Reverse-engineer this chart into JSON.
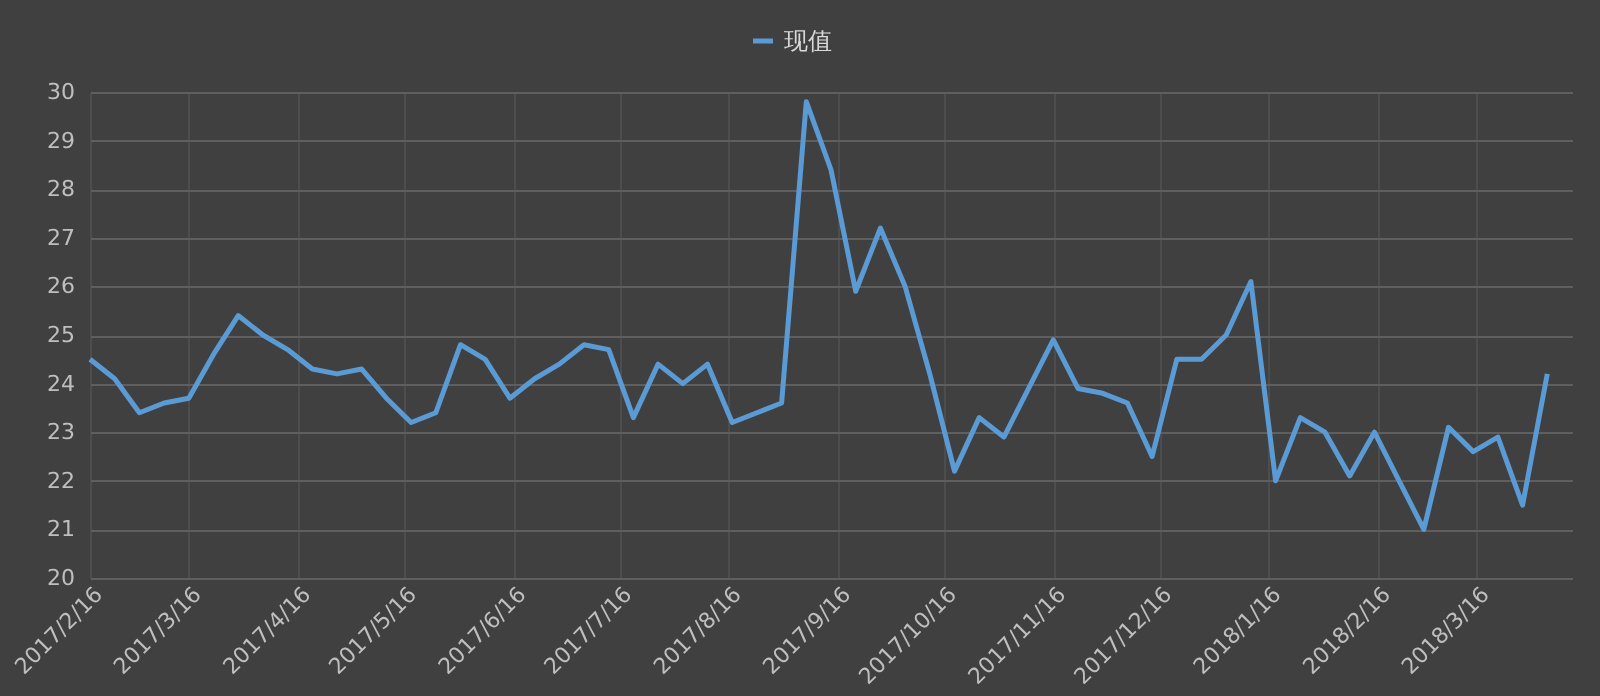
{
  "chart_data": {
    "type": "line",
    "x": [
      "2017-02-16",
      "2017-02-23",
      "2017-03-02",
      "2017-03-09",
      "2017-03-16",
      "2017-03-23",
      "2017-03-30",
      "2017-04-06",
      "2017-04-13",
      "2017-04-20",
      "2017-04-27",
      "2017-05-04",
      "2017-05-11",
      "2017-05-18",
      "2017-05-25",
      "2017-06-01",
      "2017-06-08",
      "2017-06-15",
      "2017-06-22",
      "2017-06-29",
      "2017-07-06",
      "2017-07-13",
      "2017-07-20",
      "2017-07-27",
      "2017-08-03",
      "2017-08-10",
      "2017-08-17",
      "2017-08-24",
      "2017-08-31",
      "2017-09-07",
      "2017-09-14",
      "2017-09-21",
      "2017-09-28",
      "2017-10-05",
      "2017-10-12",
      "2017-10-19",
      "2017-10-26",
      "2017-11-02",
      "2017-11-09",
      "2017-11-16",
      "2017-11-23",
      "2017-11-30",
      "2017-12-07",
      "2017-12-14",
      "2017-12-21",
      "2017-12-28",
      "2018-01-04",
      "2018-01-11",
      "2018-01-18",
      "2018-01-25",
      "2018-02-01",
      "2018-02-08",
      "2018-02-15",
      "2018-02-22",
      "2018-03-01",
      "2018-03-08",
      "2018-03-15",
      "2018-03-22",
      "2018-03-29",
      "2018-04-05"
    ],
    "series": [
      {
        "name": "现值",
        "color": "#5b9bd5",
        "values": [
          24.5,
          24.1,
          23.4,
          23.6,
          23.7,
          24.6,
          25.4,
          25.0,
          24.7,
          24.3,
          24.2,
          24.3,
          23.7,
          23.2,
          23.4,
          24.8,
          24.5,
          23.7,
          24.1,
          24.4,
          24.8,
          24.7,
          23.3,
          24.4,
          24.0,
          24.4,
          23.2,
          23.4,
          23.6,
          29.8,
          28.4,
          25.9,
          27.2,
          26.0,
          24.2,
          22.2,
          23.3,
          22.9,
          23.9,
          24.9,
          23.9,
          23.8,
          23.6,
          22.5,
          24.5,
          24.5,
          25.0,
          26.1,
          22.0,
          23.3,
          23.0,
          22.1,
          23.0,
          22.0,
          21.0,
          23.1,
          22.6,
          22.9,
          21.5,
          24.2
        ]
      }
    ],
    "xlim": [
      "2017-02-16",
      "2018-04-12"
    ],
    "xticks": [
      {
        "value": "2017-02-16",
        "label": "2017/2/16"
      },
      {
        "value": "2017-03-16",
        "label": "2017/3/16"
      },
      {
        "value": "2017-04-16",
        "label": "2017/4/16"
      },
      {
        "value": "2017-05-16",
        "label": "2017/5/16"
      },
      {
        "value": "2017-06-16",
        "label": "2017/6/16"
      },
      {
        "value": "2017-07-16",
        "label": "2017/7/16"
      },
      {
        "value": "2017-08-16",
        "label": "2017/8/16"
      },
      {
        "value": "2017-09-16",
        "label": "2017/9/16"
      },
      {
        "value": "2017-10-16",
        "label": "2017/10/16"
      },
      {
        "value": "2017-11-16",
        "label": "2017/11/16"
      },
      {
        "value": "2017-12-16",
        "label": "2017/12/16"
      },
      {
        "value": "2018-01-16",
        "label": "2018/1/16"
      },
      {
        "value": "2018-02-16",
        "label": "2018/2/16"
      },
      {
        "value": "2018-03-16",
        "label": "2018/3/16"
      }
    ],
    "ylim": [
      20,
      30
    ],
    "yticks": [
      20,
      21,
      22,
      23,
      24,
      25,
      26,
      27,
      28,
      29,
      30
    ],
    "grid": true,
    "legend": "top",
    "marker": "none",
    "line_style": "solid"
  }
}
